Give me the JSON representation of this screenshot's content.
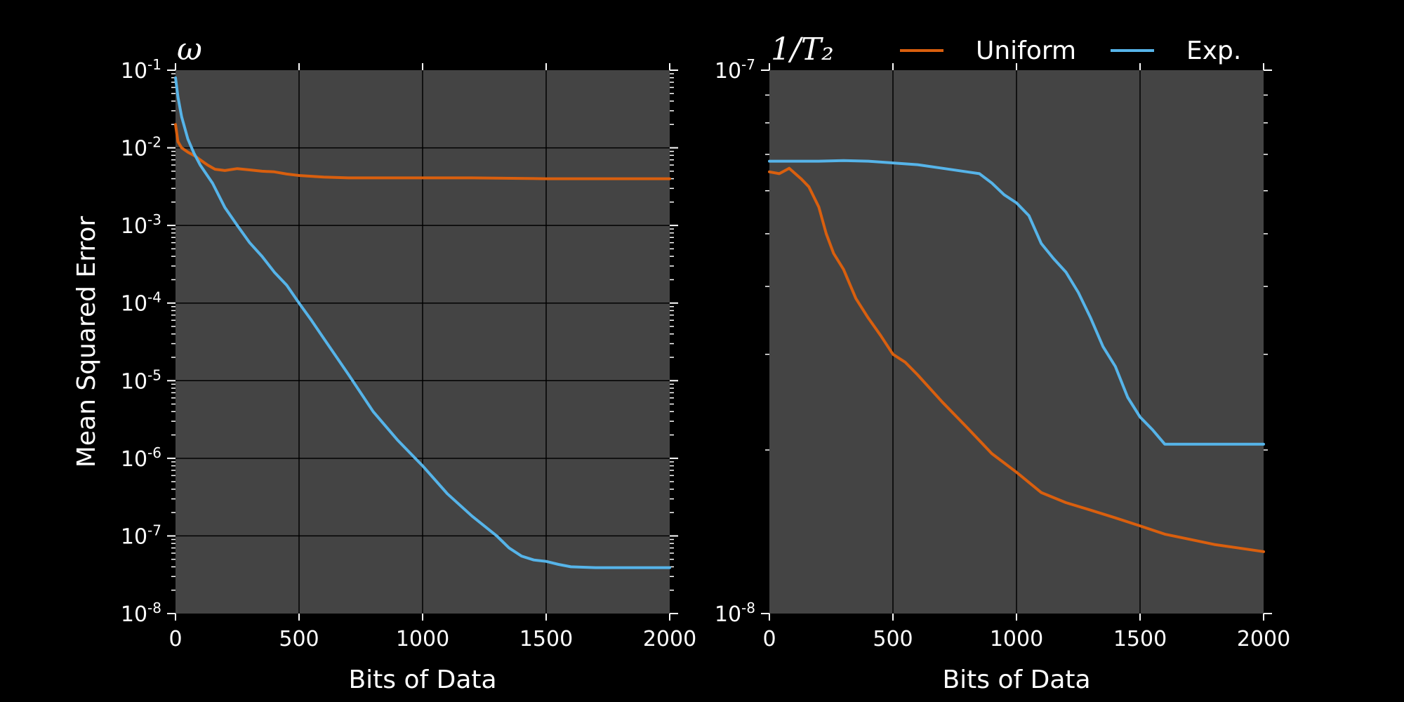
{
  "colors": {
    "background": "#000000",
    "plot_bg": "#444444",
    "grid": "#000000",
    "text": "#ffffff",
    "uniform": "#d95f0e",
    "exp": "#56b4e9"
  },
  "legend": {
    "placement": "top-right",
    "entries": [
      {
        "label": "Uniform",
        "color": "#d95f0e"
      },
      {
        "label": "Exp.",
        "color": "#56b4e9"
      }
    ]
  },
  "chart_data": [
    {
      "type": "line",
      "title": "ω",
      "xlabel": "Bits of Data",
      "ylabel": "Mean Squared Error",
      "xscale": "linear",
      "yscale": "log",
      "xlim": [
        0,
        2000
      ],
      "ylim": [
        1e-08,
        0.1
      ],
      "xticks": [
        0,
        500,
        1000,
        1500,
        2000
      ],
      "xtick_labels": [
        "0",
        "500",
        "1000",
        "1500",
        "2000"
      ],
      "yticks": [
        1e-08,
        1e-07,
        1e-06,
        1e-05,
        0.0001,
        0.001,
        0.01,
        0.1
      ],
      "ytick_labels": [
        {
          "base": "10",
          "exp": "-8"
        },
        {
          "base": "10",
          "exp": "-7"
        },
        {
          "base": "10",
          "exp": "-6"
        },
        {
          "base": "10",
          "exp": "-5"
        },
        {
          "base": "10",
          "exp": "-4"
        },
        {
          "base": "10",
          "exp": "-3"
        },
        {
          "base": "10",
          "exp": "-2"
        },
        {
          "base": "10",
          "exp": "-1"
        }
      ],
      "grid": true,
      "series": [
        {
          "name": "Uniform",
          "color": "#d95f0e",
          "x": [
            0,
            10,
            25,
            50,
            80,
            100,
            130,
            160,
            200,
            250,
            300,
            350,
            400,
            450,
            500,
            600,
            700,
            800,
            900,
            1000,
            1200,
            1500,
            1800,
            2000
          ],
          "y": [
            0.02,
            0.012,
            0.01,
            0.0088,
            0.0078,
            0.007,
            0.006,
            0.0053,
            0.0051,
            0.0054,
            0.0052,
            0.005,
            0.0049,
            0.0046,
            0.0044,
            0.0042,
            0.0041,
            0.0041,
            0.0041,
            0.0041,
            0.0041,
            0.004,
            0.004,
            0.004
          ]
        },
        {
          "name": "Exp.",
          "color": "#56b4e9",
          "x": [
            0,
            10,
            25,
            50,
            75,
            100,
            150,
            200,
            250,
            300,
            350,
            400,
            450,
            500,
            550,
            600,
            700,
            800,
            900,
            1000,
            1100,
            1200,
            1300,
            1350,
            1400,
            1450,
            1500,
            1550,
            1600,
            1700,
            1800,
            2000
          ],
          "y": [
            0.08,
            0.045,
            0.025,
            0.013,
            0.0085,
            0.006,
            0.0035,
            0.0017,
            0.001,
            0.0006,
            0.0004,
            0.00025,
            0.00017,
            0.0001,
            6e-05,
            3.5e-05,
            1.2e-05,
            4e-06,
            1.7e-06,
            8e-07,
            3.5e-07,
            1.8e-07,
            1e-07,
            7e-08,
            5.5e-08,
            4.9e-08,
            4.7e-08,
            4.3e-08,
            4e-08,
            3.9e-08,
            3.9e-08,
            3.9e-08
          ]
        }
      ]
    },
    {
      "type": "line",
      "title": "1/T₂",
      "xlabel": "Bits of Data",
      "ylabel": "",
      "xscale": "linear",
      "yscale": "log",
      "xlim": [
        0,
        2000
      ],
      "ylim": [
        1e-08,
        1e-07
      ],
      "xticks": [
        0,
        500,
        1000,
        1500,
        2000
      ],
      "xtick_labels": [
        "0",
        "500",
        "1000",
        "1500",
        "2000"
      ],
      "yticks": [
        1e-08,
        1e-07
      ],
      "ytick_labels": [
        {
          "base": "10",
          "exp": "-8"
        },
        {
          "base": "10",
          "exp": "-7"
        }
      ],
      "grid": true,
      "series": [
        {
          "name": "Uniform",
          "color": "#d95f0e",
          "x": [
            0,
            40,
            80,
            130,
            160,
            200,
            230,
            260,
            300,
            350,
            400,
            450,
            500,
            550,
            600,
            700,
            800,
            900,
            1000,
            1100,
            1200,
            1300,
            1400,
            1500,
            1600,
            1700,
            1800,
            1900,
            2000
          ],
          "y": [
            6.5e-08,
            6.45e-08,
            6.6e-08,
            6.3e-08,
            6.1e-08,
            5.6e-08,
            5e-08,
            4.6e-08,
            4.3e-08,
            3.8e-08,
            3.5e-08,
            3.25e-08,
            3e-08,
            2.9e-08,
            2.75e-08,
            2.45e-08,
            2.2e-08,
            1.97e-08,
            1.82e-08,
            1.67e-08,
            1.6e-08,
            1.55e-08,
            1.5e-08,
            1.45e-08,
            1.4e-08,
            1.37e-08,
            1.34e-08,
            1.32e-08,
            1.3e-08
          ]
        },
        {
          "name": "Exp.",
          "color": "#56b4e9",
          "x": [
            0,
            100,
            200,
            300,
            400,
            500,
            600,
            700,
            800,
            850,
            900,
            950,
            1000,
            1050,
            1100,
            1150,
            1200,
            1250,
            1300,
            1350,
            1400,
            1450,
            1500,
            1550,
            1600,
            1700,
            1800,
            2000
          ],
          "y": [
            6.8e-08,
            6.8e-08,
            6.8e-08,
            6.82e-08,
            6.8e-08,
            6.75e-08,
            6.7e-08,
            6.6e-08,
            6.5e-08,
            6.45e-08,
            6.2e-08,
            5.9e-08,
            5.7e-08,
            5.4e-08,
            4.8e-08,
            4.5e-08,
            4.25e-08,
            3.9e-08,
            3.5e-08,
            3.1e-08,
            2.85e-08,
            2.5e-08,
            2.3e-08,
            2.18e-08,
            2.05e-08,
            2.05e-08,
            2.05e-08,
            2.05e-08
          ]
        }
      ]
    }
  ]
}
